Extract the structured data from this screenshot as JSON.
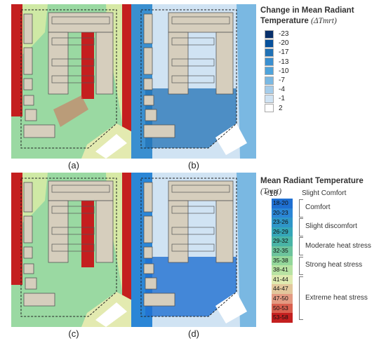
{
  "captions": [
    "(a)",
    "(b)",
    "(c)",
    "(d)"
  ],
  "legend_top": {
    "title_line1": "Change in Mean Radiant",
    "title_line2": "Temperature",
    "symbol": "(ΔTmrt)",
    "entries": [
      {
        "label": "-23",
        "color": "#08306b"
      },
      {
        "label": "-20",
        "color": "#08519c"
      },
      {
        "label": "-17",
        "color": "#2171b5"
      },
      {
        "label": "-13",
        "color": "#3a8fd0"
      },
      {
        "label": "-10",
        "color": "#4fa3db"
      },
      {
        "label": "-7",
        "color": "#7ab8e2"
      },
      {
        "label": "-4",
        "color": "#a6cdea"
      },
      {
        "label": "-1",
        "color": "#d0e3f3"
      },
      {
        "label": "2",
        "color": "#ffffff"
      }
    ]
  },
  "legend_bottom": {
    "title": "Mean Radiant Temperature",
    "symbol": "(Tmrt)",
    "first_label": "<18",
    "entries": [
      {
        "label": "18-20",
        "color": "#1f6fd1"
      },
      {
        "label": "20-23",
        "color": "#2b86d6"
      },
      {
        "label": "23-26",
        "color": "#2f96c8"
      },
      {
        "label": "26-29",
        "color": "#35a6b8"
      },
      {
        "label": "29-32",
        "color": "#49b4a6"
      },
      {
        "label": "32-35",
        "color": "#6cc39c"
      },
      {
        "label": "35-38",
        "color": "#93d79a"
      },
      {
        "label": "38-41",
        "color": "#b8e3a3"
      },
      {
        "label": "41-44",
        "color": "#dfeab0"
      },
      {
        "label": "44-47",
        "color": "#e2c79c"
      },
      {
        "label": "47-50",
        "color": "#e39a82"
      },
      {
        "label": "50-53",
        "color": "#d9604f"
      },
      {
        "label": "53-58",
        "color": "#c41f1f"
      }
    ],
    "categories": [
      "Slight Comfort",
      "Comfort",
      "Slight  discomfort",
      "Moderate heat stress",
      "Strong heat stress",
      "Extreme heat stress"
    ]
  }
}
